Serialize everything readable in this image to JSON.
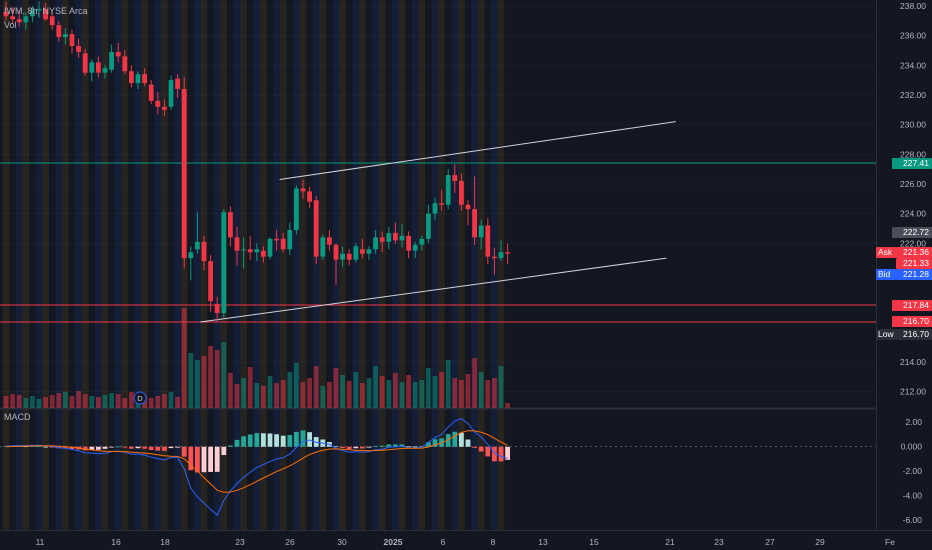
{
  "header": {
    "title": "IWM, 8h, NYSE Arca",
    "volume_label": "Vol"
  },
  "macd_label": "MACD",
  "price_axis": {
    "ticks": [
      "238.00",
      "236.00",
      "234.00",
      "232.00",
      "230.00",
      "228.00",
      "226.00",
      "224.00",
      "222.00",
      "214.00",
      "212.00"
    ],
    "tick_values": [
      238,
      236,
      234,
      232,
      230,
      228,
      226,
      224,
      222,
      214,
      212
    ],
    "range": [
      210.9,
      238.4
    ]
  },
  "macd_axis": {
    "ticks": [
      "2.00",
      "0.000",
      "-2.00",
      "-4.00",
      "-6.00"
    ],
    "tick_values": [
      2,
      0,
      -2,
      -4,
      -6
    ],
    "range": [
      -6.8,
      3.0
    ]
  },
  "time_axis": {
    "labels": [
      "11",
      "16",
      "18",
      "23",
      "26",
      "30",
      "2025",
      "6",
      "8",
      "13",
      "15",
      "21",
      "23",
      "27",
      "29",
      "Fe"
    ]
  },
  "price_tags": {
    "upper_line": {
      "value": "227.41",
      "color": "#089981"
    },
    "last_top": {
      "value": "222.72",
      "color": "#4a4e59"
    },
    "ask": {
      "label": "Ask",
      "value": "221.36",
      "color": "#f23645"
    },
    "last": {
      "value": "221.33",
      "color": "#f23645"
    },
    "bid": {
      "label": "Bid",
      "value": "221.28",
      "color": "#2962ff"
    },
    "support1": {
      "value": "217.84",
      "color": "#f23645"
    },
    "support2": {
      "value": "216.70",
      "color": "#f23645"
    },
    "low": {
      "label": "Low",
      "value": "216.70",
      "color": "#2a2e39"
    }
  },
  "event_marker": "D",
  "colors": {
    "up": "#089981",
    "down": "#f23645",
    "macd": "#2962ff",
    "signal": "#ff6d00",
    "session": "#d4a017",
    "hline_green": "#089981",
    "hline_red": "#f23645"
  },
  "chart_data": {
    "type": "candlestick",
    "symbol": "IWM",
    "interval": "8h",
    "exchange": "NYSE Arca",
    "ylim": [
      210.9,
      238.4
    ],
    "horizontal_lines": [
      227.41,
      217.84,
      216.7
    ],
    "trendlines": [
      {
        "from": [
          0.3,
          226.3
        ],
        "to": [
          0.725,
          230.2
        ]
      },
      {
        "from": [
          0.215,
          216.7
        ],
        "to": [
          0.715,
          221.0
        ]
      }
    ],
    "ohlc": [
      [
        237.6,
        238.3,
        237.0,
        237.3
      ],
      [
        237.3,
        237.9,
        236.8,
        237.1
      ],
      [
        237.1,
        237.7,
        236.6,
        236.9
      ],
      [
        236.9,
        237.6,
        236.4,
        237.3
      ],
      [
        237.3,
        238.0,
        236.9,
        237.7
      ],
      [
        237.7,
        238.3,
        237.2,
        237.8
      ],
      [
        237.8,
        238.2,
        237.0,
        237.1
      ],
      [
        237.3,
        237.6,
        236.4,
        236.7
      ],
      [
        236.7,
        237.0,
        235.6,
        235.9
      ],
      [
        235.9,
        236.5,
        235.4,
        236.1
      ],
      [
        236.1,
        236.4,
        234.8,
        235.3
      ],
      [
        235.3,
        235.8,
        234.5,
        234.9
      ],
      [
        234.8,
        235.1,
        233.3,
        233.5
      ],
      [
        233.5,
        234.4,
        232.9,
        234.2
      ],
      [
        234.2,
        234.6,
        233.2,
        233.5
      ],
      [
        233.5,
        234.0,
        233.1,
        233.8
      ],
      [
        233.7,
        235.4,
        233.5,
        234.9
      ],
      [
        234.9,
        235.5,
        234.2,
        234.6
      ],
      [
        234.6,
        235.0,
        233.4,
        233.6
      ],
      [
        233.6,
        234.0,
        232.5,
        232.8
      ],
      [
        232.8,
        233.6,
        232.4,
        233.4
      ],
      [
        233.4,
        233.8,
        232.6,
        232.8
      ],
      [
        232.7,
        233.0,
        231.4,
        231.6
      ],
      [
        231.6,
        232.2,
        230.7,
        231.2
      ],
      [
        231.2,
        231.7,
        230.6,
        231.0
      ],
      [
        231.2,
        233.3,
        231.0,
        233.0
      ],
      [
        233.1,
        233.4,
        231.8,
        232.4
      ],
      [
        232.4,
        233.2,
        220.3,
        221.0
      ],
      [
        221.0,
        221.8,
        219.5,
        221.4
      ],
      [
        221.6,
        224.1,
        221.3,
        222.1
      ],
      [
        222.1,
        222.5,
        220.2,
        220.8
      ],
      [
        220.8,
        221.2,
        217.4,
        218.1
      ],
      [
        217.9,
        218.4,
        216.7,
        217.3
      ],
      [
        217.3,
        224.3,
        217.0,
        224.1
      ],
      [
        224.1,
        224.5,
        221.8,
        222.4
      ],
      [
        222.4,
        223.1,
        220.5,
        221.5
      ],
      [
        221.6,
        222.4,
        220.3,
        221.6
      ],
      [
        221.6,
        222.5,
        220.9,
        221.4
      ],
      [
        221.4,
        222.0,
        220.8,
        221.6
      ],
      [
        221.5,
        221.8,
        220.7,
        221.1
      ],
      [
        221.1,
        222.4,
        220.9,
        222.3
      ],
      [
        222.3,
        222.9,
        221.5,
        222.2
      ],
      [
        222.3,
        222.7,
        221.4,
        221.6
      ],
      [
        221.6,
        223.4,
        221.2,
        222.9
      ],
      [
        222.9,
        225.9,
        222.6,
        225.7
      ],
      [
        225.7,
        226.3,
        225.0,
        225.5
      ],
      [
        225.5,
        225.8,
        224.4,
        224.8
      ],
      [
        224.9,
        225.2,
        220.6,
        221.1
      ],
      [
        221.1,
        222.6,
        220.9,
        222.4
      ],
      [
        222.4,
        222.9,
        221.5,
        221.9
      ],
      [
        221.9,
        222.0,
        219.2,
        220.9
      ],
      [
        220.9,
        221.8,
        220.4,
        221.3
      ],
      [
        221.3,
        221.6,
        220.5,
        220.9
      ],
      [
        220.9,
        222.0,
        220.7,
        221.8
      ],
      [
        221.6,
        222.3,
        221.0,
        221.3
      ],
      [
        221.3,
        221.8,
        220.9,
        221.6
      ],
      [
        221.6,
        222.9,
        221.3,
        222.4
      ],
      [
        222.4,
        222.8,
        221.4,
        222.1
      ],
      [
        222.1,
        223.1,
        221.6,
        222.7
      ],
      [
        222.7,
        223.4,
        222.0,
        222.2
      ],
      [
        222.2,
        223.3,
        221.7,
        222.5
      ],
      [
        222.5,
        222.8,
        221.0,
        221.5
      ],
      [
        221.5,
        222.1,
        221.0,
        221.9
      ],
      [
        221.9,
        222.5,
        221.5,
        222.3
      ],
      [
        222.3,
        224.6,
        222.0,
        224.0
      ],
      [
        224.0,
        225.1,
        223.6,
        224.7
      ],
      [
        224.7,
        225.6,
        224.2,
        224.6
      ],
      [
        224.6,
        227.0,
        224.3,
        226.6
      ],
      [
        226.6,
        227.3,
        225.4,
        226.2
      ],
      [
        226.2,
        226.7,
        224.2,
        224.6
      ],
      [
        224.6,
        224.9,
        223.2,
        224.3
      ],
      [
        224.3,
        226.5,
        221.9,
        222.4
      ],
      [
        222.4,
        223.6,
        221.6,
        223.2
      ],
      [
        223.2,
        223.7,
        220.6,
        221.1
      ],
      [
        221.1,
        221.7,
        219.9,
        221.0
      ],
      [
        221.0,
        222.2,
        220.8,
        221.4
      ],
      [
        221.4,
        222.0,
        220.6,
        221.3
      ]
    ],
    "volume_relative": [
      0.12,
      0.14,
      0.13,
      0.1,
      0.12,
      0.09,
      0.11,
      0.13,
      0.15,
      0.16,
      0.12,
      0.17,
      0.14,
      0.12,
      0.11,
      0.13,
      0.15,
      0.14,
      0.1,
      0.16,
      0.12,
      0.13,
      0.1,
      0.12,
      0.14,
      0.16,
      0.11,
      1.0,
      0.55,
      0.48,
      0.52,
      0.62,
      0.58,
      0.66,
      0.35,
      0.24,
      0.3,
      0.41,
      0.25,
      0.22,
      0.32,
      0.25,
      0.28,
      0.36,
      0.45,
      0.26,
      0.3,
      0.42,
      0.22,
      0.26,
      0.4,
      0.33,
      0.27,
      0.36,
      0.25,
      0.3,
      0.42,
      0.32,
      0.28,
      0.35,
      0.26,
      0.33,
      0.26,
      0.28,
      0.4,
      0.32,
      0.36,
      0.48,
      0.3,
      0.28,
      0.34,
      0.5,
      0.36,
      0.28,
      0.3,
      0.42,
      0.05
    ],
    "macd": {
      "ylim": [
        -6.8,
        3.0
      ],
      "macd": [
        0.05,
        0.08,
        0.1,
        0.09,
        0.11,
        0.12,
        0.08,
        0.02,
        -0.08,
        -0.12,
        -0.22,
        -0.32,
        -0.5,
        -0.52,
        -0.58,
        -0.55,
        -0.4,
        -0.36,
        -0.45,
        -0.6,
        -0.6,
        -0.68,
        -0.85,
        -0.98,
        -1.08,
        -0.88,
        -0.86,
        -1.8,
        -3.4,
        -4.1,
        -4.6,
        -5.1,
        -5.6,
        -4.4,
        -3.6,
        -3.0,
        -2.5,
        -2.1,
        -1.7,
        -1.45,
        -1.2,
        -1.0,
        -0.9,
        -0.6,
        -0.05,
        0.4,
        0.55,
        0.35,
        0.3,
        0.2,
        -0.15,
        -0.3,
        -0.45,
        -0.4,
        -0.45,
        -0.4,
        -0.25,
        -0.2,
        -0.05,
        0.0,
        0.05,
        -0.1,
        -0.1,
        -0.05,
        0.35,
        0.75,
        1.0,
        1.6,
        2.1,
        2.3,
        1.9,
        1.2,
        0.8,
        0.2,
        -0.5,
        -0.8,
        -0.95
      ],
      "signal": [
        0.0,
        0.02,
        0.04,
        0.05,
        0.07,
        0.08,
        0.08,
        0.07,
        0.04,
        0.01,
        -0.04,
        -0.1,
        -0.2,
        -0.26,
        -0.33,
        -0.38,
        -0.38,
        -0.38,
        -0.4,
        -0.44,
        -0.48,
        -0.52,
        -0.58,
        -0.66,
        -0.74,
        -0.77,
        -0.79,
        -0.99,
        -1.48,
        -2.0,
        -2.52,
        -3.04,
        -3.55,
        -3.72,
        -3.7,
        -3.56,
        -3.35,
        -3.1,
        -2.82,
        -2.55,
        -2.28,
        -2.02,
        -1.8,
        -1.56,
        -1.26,
        -0.93,
        -0.64,
        -0.44,
        -0.29,
        -0.19,
        -0.18,
        -0.2,
        -0.25,
        -0.28,
        -0.31,
        -0.33,
        -0.31,
        -0.29,
        -0.24,
        -0.19,
        -0.14,
        -0.13,
        -0.12,
        -0.11,
        -0.02,
        0.14,
        0.31,
        0.57,
        0.88,
        1.16,
        1.31,
        1.29,
        1.19,
        0.99,
        0.69,
        0.39,
        0.12
      ],
      "histogram_note": "histogram = macd - signal"
    }
  }
}
